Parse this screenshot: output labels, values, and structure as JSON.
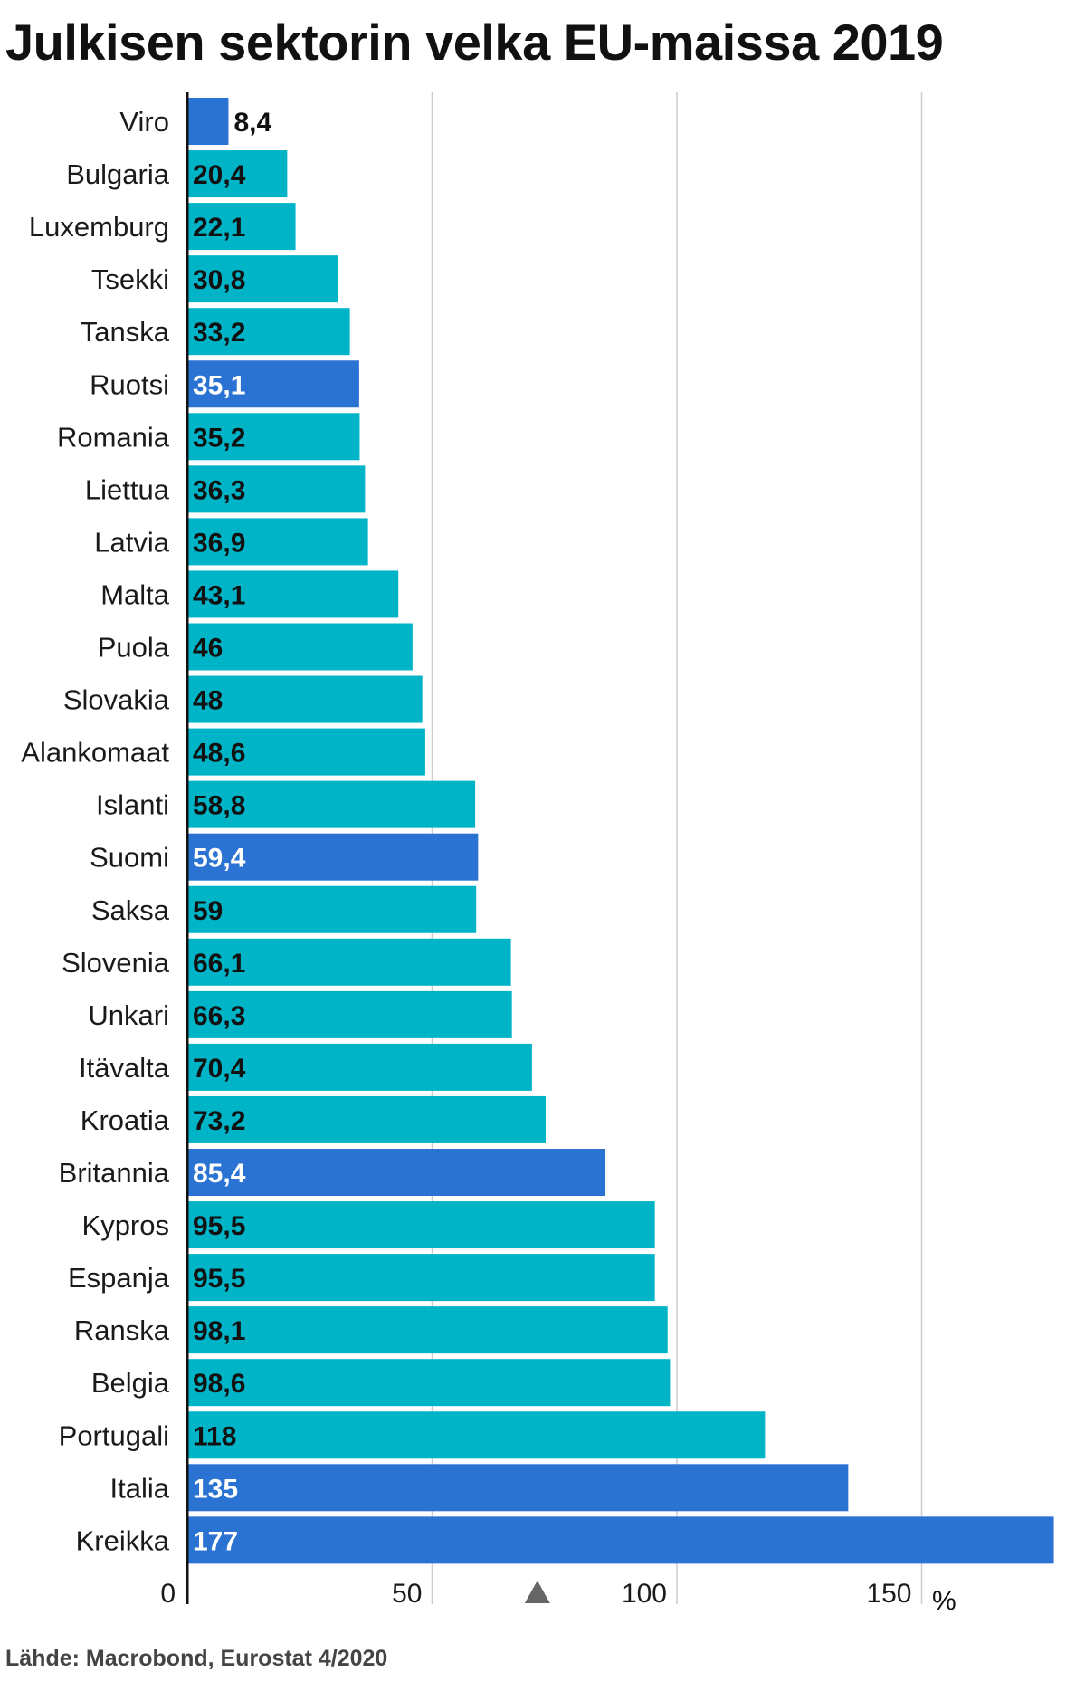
{
  "title": "Julkisen sektorin velka EU-maissa 2019",
  "source": "Lähde: Macrobond, Eurostat 4/2020",
  "colors": {
    "default": "#00b4c8",
    "highlight": "#2b73d2",
    "grid": "#cccccc",
    "axis": "#111111"
  },
  "chart_data": {
    "type": "bar",
    "orientation": "horizontal",
    "title": "Julkisen sektorin velka EU-maissa 2019",
    "xlabel": "",
    "ylabel": "",
    "unit": "%",
    "xlim": [
      0,
      177
    ],
    "x_ticks": [
      0,
      50,
      100,
      150
    ],
    "x_tick_labels": [
      "0",
      "50",
      "100",
      "150"
    ],
    "grid": true,
    "categories": [
      "Viro",
      "Bulgaria",
      "Luxemburg",
      "Tsekki",
      "Tanska",
      "Ruotsi",
      "Romania",
      "Liettua",
      "Latvia",
      "Malta",
      "Puola",
      "Slovakia",
      "Alankomaat",
      "Islanti",
      "Suomi",
      "Saksa",
      "Slovenia",
      "Unkari",
      "Itävalta",
      "Kroatia",
      "Britannia",
      "Kypros",
      "Espanja",
      "Ranska",
      "Belgia",
      "Portugali",
      "Italia",
      "Kreikka"
    ],
    "values": [
      8.4,
      20.4,
      22.1,
      30.8,
      33.2,
      35.1,
      35.2,
      36.3,
      36.9,
      43.1,
      46,
      48,
      48.6,
      58.8,
      59.4,
      59,
      66.1,
      66.3,
      70.4,
      73.2,
      85.4,
      95.5,
      95.5,
      98.1,
      98.6,
      118,
      135,
      177
    ],
    "value_labels": [
      "8,4",
      "20,4",
      "22,1",
      "30,8",
      "33,2",
      "35,1",
      "35,2",
      "36,3",
      "36,9",
      "43,1",
      "46",
      "48",
      "48,6",
      "58,8",
      "59,4",
      "59",
      "66,1",
      "66,3",
      "70,4",
      "73,2",
      "85,4",
      "95,5",
      "95,5",
      "98,1",
      "98,6",
      "118",
      "135",
      "177"
    ],
    "highlighted": [
      "Viro",
      "Ruotsi",
      "Suomi",
      "Britannia",
      "Italia",
      "Kreikka"
    ],
    "reference_marker": {
      "shape": "triangle",
      "value": 71.5
    }
  }
}
